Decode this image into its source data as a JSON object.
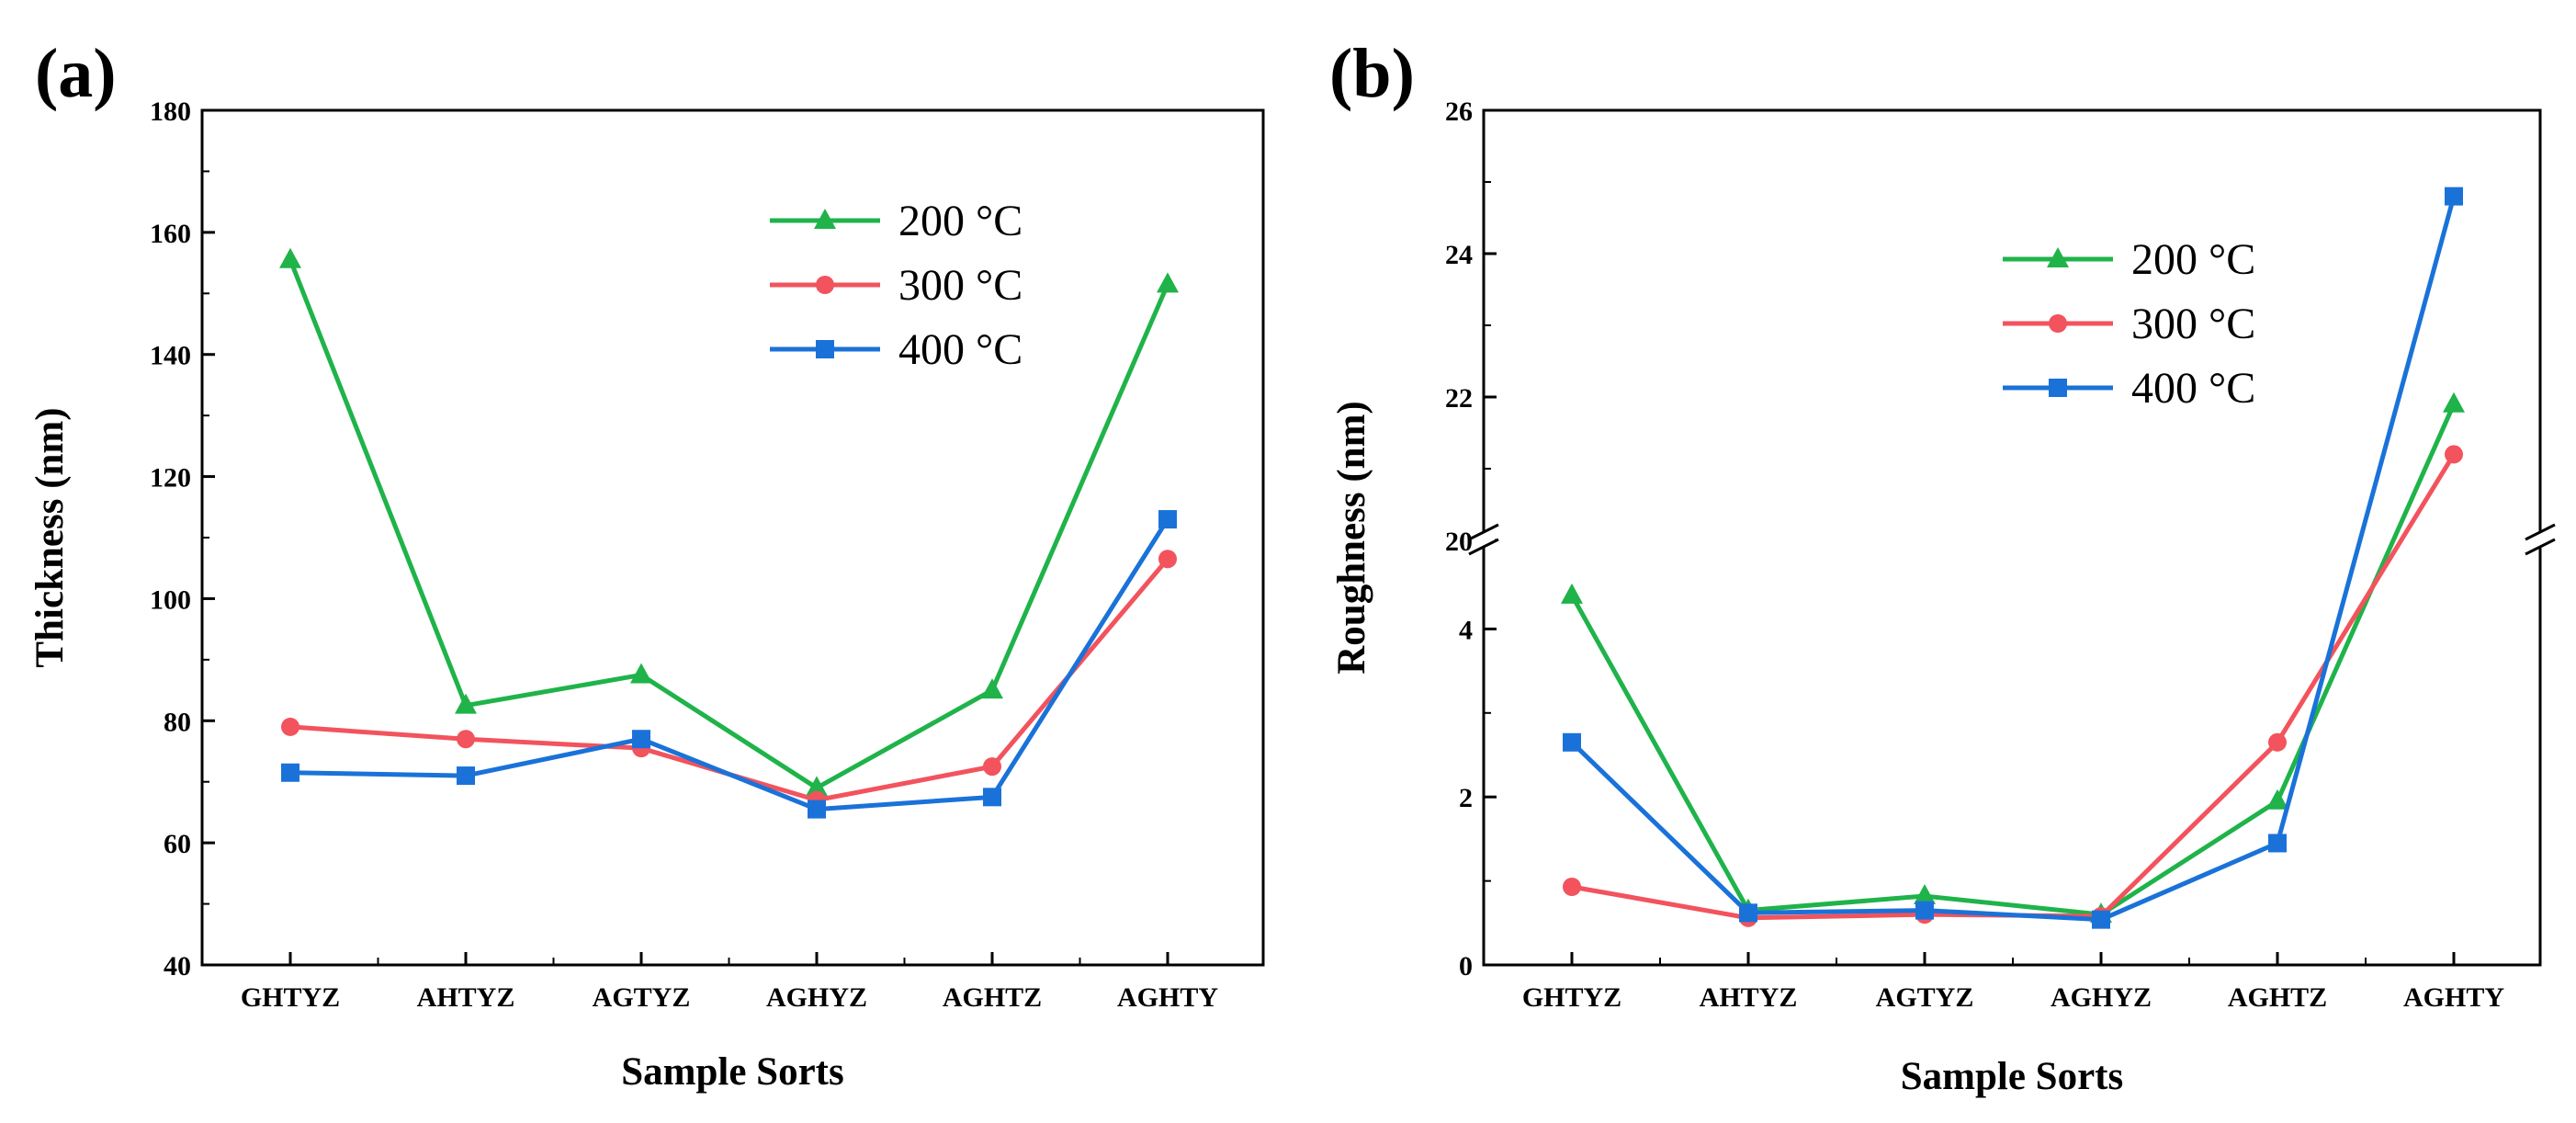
{
  "chart_data": [
    {
      "panel_label": "(a)",
      "type": "line",
      "categories": [
        "GHTYZ",
        "AHTYZ",
        "AGTYZ",
        "AGHYZ",
        "AGHTZ",
        "AGHTY"
      ],
      "xlabel": "Sample Sorts",
      "ylabel": "Thickness (nm)",
      "ylim": [
        40,
        180
      ],
      "yticks": [
        40,
        60,
        80,
        100,
        120,
        140,
        160,
        180
      ],
      "legend_position": "top-right",
      "grid": false,
      "series": [
        {
          "name": "200 °C",
          "color": "#1fb34a",
          "marker": "triangle",
          "values": [
            155.5,
            82.5,
            87.5,
            69,
            85,
            151.5
          ]
        },
        {
          "name": "300 °C",
          "color": "#f2535d",
          "marker": "circle",
          "values": [
            79,
            77,
            75.5,
            67,
            72.5,
            106.5
          ]
        },
        {
          "name": "400 °C",
          "color": "#1a72d9",
          "marker": "square",
          "values": [
            71.5,
            71,
            77,
            65.5,
            67.5,
            113
          ]
        }
      ]
    },
    {
      "panel_label": "(b)",
      "type": "line",
      "categories": [
        "GHTYZ",
        "AHTYZ",
        "AGTYZ",
        "AGHYZ",
        "AGHTZ",
        "AGHTY"
      ],
      "xlabel": "Sample Sorts",
      "ylabel": "Roughness (nm)",
      "broken_axis": {
        "lower_range": [
          0,
          5
        ],
        "upper_range": [
          20,
          26
        ]
      },
      "yticks": [
        0,
        2,
        4,
        20,
        22,
        24,
        26
      ],
      "legend_position": "top-right",
      "grid": false,
      "series": [
        {
          "name": "200 °C",
          "color": "#1fb34a",
          "marker": "triangle",
          "values": [
            4.4,
            0.65,
            0.82,
            0.6,
            1.95,
            21.9
          ]
        },
        {
          "name": "300 °C",
          "color": "#f2535d",
          "marker": "circle",
          "values": [
            0.93,
            0.56,
            0.6,
            0.58,
            2.65,
            21.2
          ]
        },
        {
          "name": "400 °C",
          "color": "#1a72d9",
          "marker": "square",
          "values": [
            2.65,
            0.62,
            0.65,
            0.54,
            1.45,
            24.8
          ]
        }
      ]
    }
  ]
}
